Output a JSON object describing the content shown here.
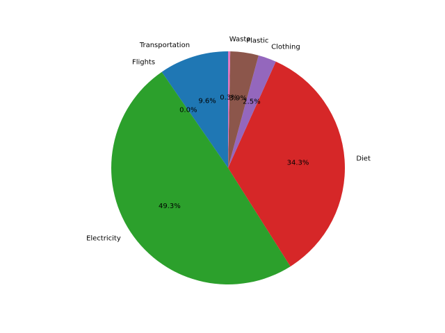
{
  "chart_data": {
    "type": "pie",
    "categories": [
      "Transportation",
      "Flights",
      "Electricity",
      "Diet",
      "Clothing",
      "Plastic",
      "Waste"
    ],
    "values": [
      9.6,
      0.0,
      49.3,
      34.3,
      2.5,
      3.9,
      0.3
    ],
    "percent_labels": [
      "9.6%",
      "0.0%",
      "49.3%",
      "34.3%",
      "2.5%",
      "3.9%",
      "0.3%"
    ],
    "colors": [
      "#1f77b4",
      "#ff7f0e",
      "#2ca02c",
      "#d62728",
      "#9467bd",
      "#8c564b",
      "#e377c2"
    ],
    "start_angle_deg": 90,
    "direction": "counterclockwise"
  }
}
